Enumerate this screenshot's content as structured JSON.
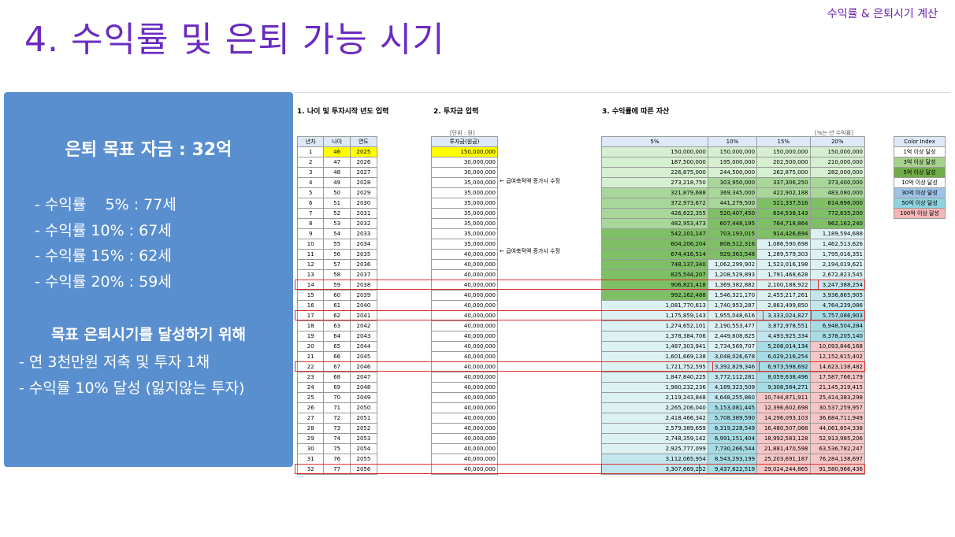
{
  "header": {
    "corner": "수익률 & 은퇴시기 계산",
    "title": "4. 수익률 및 은퇴 가능 시기"
  },
  "panel": {
    "goal": "은퇴 목표 자금 : 32억",
    "rates": [
      " - 수익률    5% : 77세",
      " - 수익률 10% : 67세",
      " - 수익률 15% : 62세",
      " - 수익률 20% : 59세"
    ],
    "heading": "목표 은퇴시기를 달성하기 위해",
    "actions": [
      "- 연 3천만원 저축 및 투자 1채",
      "- 수익률 10% 달성 (잃지않는 투자)"
    ]
  },
  "sheet": {
    "sec1": "1. 나이 및 투자시작 년도 입력",
    "sec2": "2. 투자금 입력",
    "sec3": "3. 수익률에 따른 자산",
    "unit2": "[단위 : 원]",
    "unit3": "[%는 년 수익률]",
    "h_year": "년차",
    "h_age": "나이",
    "h_yr": "연도",
    "h_inv": "투자금(원금)",
    "h_r": [
      "5%",
      "10%",
      "15%",
      "20%"
    ],
    "note": "← 급여축적액 증가시 수정",
    "legend_title": "Color Index",
    "legend": [
      "1억 이상 달성",
      "3억 이상 달성",
      "5억 이상 달성",
      "10억 이상 달성",
      "30억 이상 달성",
      "50억 이상 달성",
      "100억 이상 달성"
    ],
    "legend_colors": [
      "#ffffff",
      "#a9d18e",
      "#70ad47",
      "#ffffff",
      "#9dc3e6",
      "#8fd2e0",
      "#f4b6b6"
    ],
    "colors": {
      "highlight": "#ffff00",
      "border_red": "#d9322e",
      "panel": "#5a8fcf",
      "title": "#6a2bc1"
    },
    "rows": [
      [
        "1",
        "46",
        "2025",
        "150,000,000",
        "150,000,000",
        "150,000,000",
        "150,000,000",
        "150,000,000"
      ],
      [
        "2",
        "47",
        "2026",
        "30,000,000",
        "187,500,000",
        "195,000,000",
        "202,500,000",
        "210,000,000"
      ],
      [
        "3",
        "48",
        "2027",
        "30,000,000",
        "226,875,000",
        "244,500,000",
        "262,875,000",
        "282,000,000"
      ],
      [
        "4",
        "49",
        "2028",
        "35,000,000",
        "273,218,750",
        "303,950,000",
        "337,306,250",
        "373,400,000"
      ],
      [
        "5",
        "50",
        "2029",
        "35,000,000",
        "321,879,688",
        "369,345,000",
        "422,902,188",
        "483,080,000"
      ],
      [
        "6",
        "51",
        "2030",
        "35,000,000",
        "372,973,672",
        "441,279,500",
        "521,337,516",
        "614,696,000"
      ],
      [
        "7",
        "52",
        "2031",
        "35,000,000",
        "426,622,355",
        "520,407,450",
        "634,538,143",
        "772,635,200"
      ],
      [
        "8",
        "53",
        "2032",
        "35,000,000",
        "482,953,473",
        "607,448,195",
        "764,718,864",
        "962,162,240"
      ],
      [
        "9",
        "54",
        "2033",
        "35,000,000",
        "542,101,147",
        "703,193,015",
        "914,426,694",
        "1,189,594,688"
      ],
      [
        "10",
        "55",
        "2034",
        "35,000,000",
        "604,206,204",
        "808,512,316",
        "1,086,590,698",
        "1,462,513,626"
      ],
      [
        "11",
        "56",
        "2035",
        "40,000,000",
        "674,416,514",
        "929,363,548",
        "1,289,579,303",
        "1,795,016,351"
      ],
      [
        "12",
        "57",
        "2036",
        "40,000,000",
        "748,137,340",
        "1,062,299,902",
        "1,523,016,198",
        "2,194,019,621"
      ],
      [
        "13",
        "58",
        "2037",
        "40,000,000",
        "825,544,207",
        "1,208,529,893",
        "1,791,468,628",
        "2,672,823,545"
      ],
      [
        "14",
        "59",
        "2038",
        "40,000,000",
        "906,821,418",
        "1,369,382,882",
        "2,100,188,922",
        "3,247,388,254"
      ],
      [
        "15",
        "60",
        "2039",
        "40,000,000",
        "992,162,488",
        "1,546,321,170",
        "2,455,217,261",
        "3,936,865,905"
      ],
      [
        "16",
        "61",
        "2040",
        "40,000,000",
        "1,081,770,613",
        "1,740,953,287",
        "2,863,499,850",
        "4,764,239,086"
      ],
      [
        "17",
        "62",
        "2041",
        "40,000,000",
        "1,175,859,143",
        "1,955,048,616",
        "3,333,024,827",
        "5,757,086,903"
      ],
      [
        "18",
        "63",
        "2042",
        "40,000,000",
        "1,274,652,101",
        "2,190,553,477",
        "3,872,978,551",
        "6,948,504,284"
      ],
      [
        "19",
        "64",
        "2043",
        "40,000,000",
        "1,378,384,706",
        "2,449,608,825",
        "4,493,925,334",
        "8,378,205,140"
      ],
      [
        "20",
        "65",
        "2044",
        "40,000,000",
        "1,487,303,941",
        "2,734,569,707",
        "5,208,014,134",
        "10,093,846,168"
      ],
      [
        "21",
        "66",
        "2045",
        "40,000,000",
        "1,601,669,138",
        "3,048,026,678",
        "6,029,216,254",
        "12,152,615,402"
      ],
      [
        "22",
        "67",
        "2046",
        "40,000,000",
        "1,721,752,595",
        "3,392,829,346",
        "6,973,598,692",
        "14,623,138,482"
      ],
      [
        "23",
        "68",
        "2047",
        "40,000,000",
        "1,847,840,225",
        "3,772,112,281",
        "8,059,638,496",
        "17,587,766,179"
      ],
      [
        "24",
        "69",
        "2048",
        "40,000,000",
        "1,980,232,236",
        "4,189,323,509",
        "9,308,584,271",
        "21,145,319,415"
      ],
      [
        "25",
        "70",
        "2049",
        "40,000,000",
        "2,119,243,848",
        "4,648,255,860",
        "10,744,871,911",
        "25,414,383,298"
      ],
      [
        "26",
        "71",
        "2050",
        "40,000,000",
        "2,265,206,040",
        "5,153,081,445",
        "12,396,602,698",
        "30,537,259,957"
      ],
      [
        "27",
        "72",
        "2051",
        "40,000,000",
        "2,418,466,342",
        "5,708,389,590",
        "14,296,093,103",
        "36,684,711,949"
      ],
      [
        "28",
        "73",
        "2052",
        "40,000,000",
        "2,579,389,659",
        "6,319,228,549",
        "16,480,507,068",
        "44,061,654,338"
      ],
      [
        "29",
        "74",
        "2053",
        "40,000,000",
        "2,748,359,142",
        "6,991,151,404",
        "18,992,583,128",
        "52,913,985,206"
      ],
      [
        "30",
        "75",
        "2054",
        "40,000,000",
        "2,925,777,099",
        "7,730,266,544",
        "21,881,470,598",
        "63,536,782,247"
      ],
      [
        "31",
        "76",
        "2055",
        "40,000,000",
        "3,112,065,954",
        "8,543,293,199",
        "25,203,691,187",
        "76,284,138,697"
      ],
      [
        "32",
        "77",
        "2056",
        "40,000,000",
        "3,307,669,252",
        "9,437,622,519",
        "29,024,244,865",
        "91,580,966,436"
      ]
    ]
  }
}
